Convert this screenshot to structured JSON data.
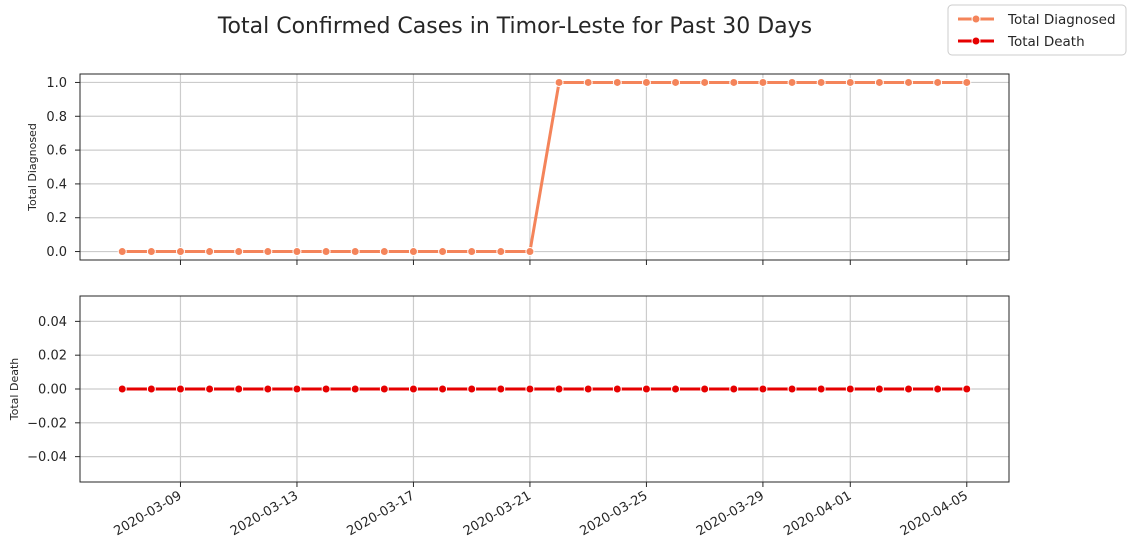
{
  "title": "Total Confirmed Cases in Timor-Leste for Past 30 Days",
  "colors": {
    "diagnosed": "#f4845a",
    "death": "#e60000",
    "grid": "#cccccc",
    "frame": "#262626"
  },
  "legend": {
    "items": [
      {
        "label": "Total Diagnosed",
        "color": "#f4845a"
      },
      {
        "label": "Total Death",
        "color": "#e60000"
      }
    ],
    "placement": "upper-right"
  },
  "chart_data": [
    {
      "type": "line",
      "ylabel": "Total Diagnosed",
      "xlabel": "",
      "ylim": [
        -0.05,
        1.05
      ],
      "yticks": [
        "0.0",
        "0.2",
        "0.4",
        "0.6",
        "0.8",
        "1.0"
      ],
      "ytick_values": [
        0.0,
        0.2,
        0.4,
        0.6,
        0.8,
        1.0
      ],
      "grid": true,
      "x": [
        "2020-03-07",
        "2020-03-08",
        "2020-03-09",
        "2020-03-10",
        "2020-03-11",
        "2020-03-12",
        "2020-03-13",
        "2020-03-14",
        "2020-03-15",
        "2020-03-16",
        "2020-03-17",
        "2020-03-18",
        "2020-03-19",
        "2020-03-20",
        "2020-03-21",
        "2020-03-22",
        "2020-03-23",
        "2020-03-24",
        "2020-03-25",
        "2020-03-26",
        "2020-03-27",
        "2020-03-28",
        "2020-03-29",
        "2020-03-30",
        "2020-03-31",
        "2020-04-01",
        "2020-04-02",
        "2020-04-03",
        "2020-04-04",
        "2020-04-05"
      ],
      "series": [
        {
          "name": "Total Diagnosed",
          "values": [
            0,
            0,
            0,
            0,
            0,
            0,
            0,
            0,
            0,
            0,
            0,
            0,
            0,
            0,
            0,
            1,
            1,
            1,
            1,
            1,
            1,
            1,
            1,
            1,
            1,
            1,
            1,
            1,
            1,
            1
          ]
        }
      ]
    },
    {
      "type": "line",
      "ylabel": "Total Death",
      "xlabel": "",
      "ylim": [
        -0.055,
        0.055
      ],
      "yticks": [
        "−0.04",
        "−0.02",
        "0.00",
        "0.02",
        "0.04"
      ],
      "ytick_values": [
        -0.04,
        -0.02,
        0.0,
        0.02,
        0.04
      ],
      "grid": true,
      "x": [
        "2020-03-07",
        "2020-03-08",
        "2020-03-09",
        "2020-03-10",
        "2020-03-11",
        "2020-03-12",
        "2020-03-13",
        "2020-03-14",
        "2020-03-15",
        "2020-03-16",
        "2020-03-17",
        "2020-03-18",
        "2020-03-19",
        "2020-03-20",
        "2020-03-21",
        "2020-03-22",
        "2020-03-23",
        "2020-03-24",
        "2020-03-25",
        "2020-03-26",
        "2020-03-27",
        "2020-03-28",
        "2020-03-29",
        "2020-03-30",
        "2020-03-31",
        "2020-04-01",
        "2020-04-02",
        "2020-04-03",
        "2020-04-04",
        "2020-04-05"
      ],
      "series": [
        {
          "name": "Total Death",
          "values": [
            0,
            0,
            0,
            0,
            0,
            0,
            0,
            0,
            0,
            0,
            0,
            0,
            0,
            0,
            0,
            0,
            0,
            0,
            0,
            0,
            0,
            0,
            0,
            0,
            0,
            0,
            0,
            0,
            0,
            0
          ]
        }
      ]
    }
  ],
  "xticks": [
    "2020-03-09",
    "2020-03-13",
    "2020-03-17",
    "2020-03-21",
    "2020-03-25",
    "2020-03-29",
    "2020-04-01",
    "2020-04-05"
  ]
}
